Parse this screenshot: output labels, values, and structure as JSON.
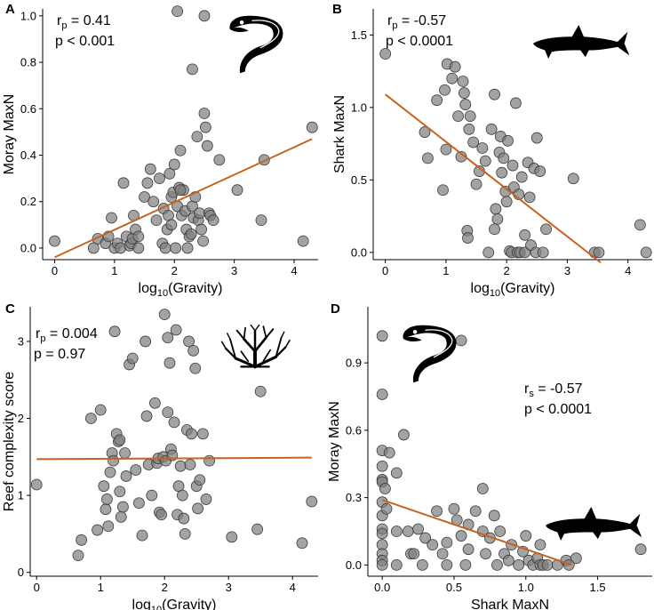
{
  "chart_data": [
    {
      "panel": "A",
      "type": "scatter",
      "xlabel_base": "log",
      "xlabel_sub": "10",
      "xlabel_tail": "(Gravity)",
      "ylabel": "Moray MaxN",
      "xlim": [
        -0.2,
        4.4
      ],
      "ylim": [
        -0.05,
        1.03
      ],
      "xticks": [
        0,
        1,
        2,
        3,
        4
      ],
      "xtick_labels": [
        "0",
        "1",
        "2",
        "3",
        "4"
      ],
      "yticks": [
        0,
        0.2,
        0.4,
        0.6,
        0.8,
        1.0
      ],
      "ytick_labels": [
        "0.0",
        "0.2",
        "0.4",
        "0.6",
        "0.8",
        "1.0"
      ],
      "stat_line1": {
        "base": "r",
        "sub": "p",
        "tail": " = 0.41"
      },
      "stat_line2": "p < 0.001",
      "icon": "moray-eel-icon",
      "fit": {
        "x": [
          0.0,
          4.3
        ],
        "y": [
          -0.04,
          0.47
        ]
      },
      "points": [
        [
          0.0,
          0.03
        ],
        [
          0.65,
          0.0
        ],
        [
          0.72,
          0.04
        ],
        [
          0.85,
          0.02
        ],
        [
          0.9,
          0.05
        ],
        [
          0.95,
          0.13
        ],
        [
          1.0,
          0.0
        ],
        [
          1.05,
          0.02
        ],
        [
          1.1,
          0.0
        ],
        [
          1.15,
          0.28
        ],
        [
          1.2,
          0.05
        ],
        [
          1.25,
          0.01
        ],
        [
          1.28,
          0.02
        ],
        [
          1.3,
          0.04
        ],
        [
          1.32,
          0.14
        ],
        [
          1.35,
          0.08
        ],
        [
          1.4,
          0.0
        ],
        [
          1.5,
          0.22
        ],
        [
          1.55,
          0.28
        ],
        [
          1.6,
          0.34
        ],
        [
          1.65,
          0.2
        ],
        [
          1.7,
          0.12
        ],
        [
          1.75,
          0.3
        ],
        [
          1.8,
          0.02
        ],
        [
          1.82,
          0.17
        ],
        [
          1.85,
          0.0
        ],
        [
          1.88,
          0.08
        ],
        [
          1.9,
          0.14
        ],
        [
          1.92,
          0.32
        ],
        [
          1.95,
          0.22
        ],
        [
          1.98,
          0.24
        ],
        [
          2.0,
          0.36
        ],
        [
          2.02,
          0.0
        ],
        [
          2.05,
          0.18
        ],
        [
          2.08,
          0.26
        ],
        [
          2.1,
          0.42
        ],
        [
          2.12,
          0.14
        ],
        [
          2.15,
          0.25
        ],
        [
          2.18,
          0.16
        ],
        [
          2.2,
          0.08
        ],
        [
          2.22,
          0.0
        ],
        [
          2.25,
          0.05
        ],
        [
          2.28,
          0.06
        ],
        [
          2.3,
          0.18
        ],
        [
          2.32,
          0.13
        ],
        [
          2.35,
          0.22
        ],
        [
          2.38,
          0.48
        ],
        [
          2.4,
          0.12
        ],
        [
          2.42,
          0.15
        ],
        [
          2.45,
          0.08
        ],
        [
          2.48,
          0.03
        ],
        [
          2.5,
          0.58
        ],
        [
          2.52,
          0.52
        ],
        [
          2.55,
          0.44
        ],
        [
          2.58,
          0.15
        ],
        [
          2.6,
          0.14
        ],
        [
          2.65,
          0.12
        ],
        [
          2.75,
          0.38
        ],
        [
          2.3,
          0.77
        ],
        [
          2.05,
          1.02
        ],
        [
          2.5,
          1.0
        ],
        [
          2.1,
          0.25
        ],
        [
          1.95,
          0.1
        ],
        [
          1.4,
          0.05
        ],
        [
          3.05,
          0.25
        ],
        [
          3.45,
          0.12
        ],
        [
          3.5,
          0.38
        ],
        [
          4.15,
          0.03
        ],
        [
          4.3,
          0.52
        ]
      ]
    },
    {
      "panel": "B",
      "type": "scatter",
      "xlabel_base": "log",
      "xlabel_sub": "10",
      "xlabel_tail": "(Gravity)",
      "ylabel": "Shark MaxN",
      "xlim": [
        -0.2,
        4.4
      ],
      "ylim": [
        -0.05,
        1.68
      ],
      "xticks": [
        0,
        1,
        2,
        3,
        4
      ],
      "xtick_labels": [
        "0",
        "1",
        "2",
        "3",
        "4"
      ],
      "yticks": [
        0,
        0.5,
        1.0,
        1.5
      ],
      "ytick_labels": [
        "0.0",
        "0.5",
        "1.0",
        "1.5"
      ],
      "stat_line1": {
        "base": "r",
        "sub": "p",
        "tail": " = -0.57"
      },
      "stat_line2": "p < 0.0001",
      "icon": "shark-icon",
      "fit": {
        "x": [
          0.0,
          3.55
        ],
        "y": [
          1.09,
          -0.07
        ]
      },
      "points": [
        [
          0.0,
          1.37
        ],
        [
          0.65,
          0.83
        ],
        [
          0.7,
          0.65
        ],
        [
          0.85,
          1.05
        ],
        [
          0.95,
          0.43
        ],
        [
          0.98,
          1.12
        ],
        [
          1.0,
          0.71
        ],
        [
          1.02,
          1.3
        ],
        [
          1.1,
          1.2
        ],
        [
          1.15,
          1.28
        ],
        [
          1.2,
          0.94
        ],
        [
          1.25,
          0.66
        ],
        [
          1.28,
          1.18
        ],
        [
          1.3,
          1.1
        ],
        [
          1.32,
          1.02
        ],
        [
          1.35,
          0.15
        ],
        [
          1.36,
          0.1
        ],
        [
          1.38,
          0.85
        ],
        [
          1.4,
          0.94
        ],
        [
          1.45,
          0.76
        ],
        [
          1.5,
          0.47
        ],
        [
          1.55,
          0.56
        ],
        [
          1.6,
          0.72
        ],
        [
          1.65,
          0.63
        ],
        [
          1.7,
          0.0
        ],
        [
          1.75,
          0.85
        ],
        [
          1.8,
          1.09
        ],
        [
          1.82,
          0.3
        ],
        [
          1.85,
          0.23
        ],
        [
          1.88,
          0.69
        ],
        [
          1.9,
          0.8
        ],
        [
          1.92,
          0.55
        ],
        [
          1.95,
          0.65
        ],
        [
          1.98,
          0.42
        ],
        [
          2.0,
          0.35
        ],
        [
          2.02,
          0.77
        ],
        [
          2.05,
          0.01
        ],
        [
          2.08,
          0.0
        ],
        [
          2.1,
          0.6
        ],
        [
          2.12,
          0.45
        ],
        [
          2.15,
          1.03
        ],
        [
          2.18,
          0.0
        ],
        [
          2.2,
          0.4
        ],
        [
          2.22,
          0.0
        ],
        [
          2.25,
          0.52
        ],
        [
          2.3,
          0.0
        ],
        [
          2.35,
          0.62
        ],
        [
          2.38,
          0.38
        ],
        [
          2.4,
          0.05
        ],
        [
          2.45,
          0.58
        ],
        [
          2.48,
          0.0
        ],
        [
          2.5,
          0.79
        ],
        [
          2.55,
          0.56
        ],
        [
          2.6,
          0.0
        ],
        [
          2.65,
          0.16
        ],
        [
          3.1,
          0.51
        ],
        [
          3.45,
          0.0
        ],
        [
          3.52,
          0.0
        ],
        [
          4.2,
          0.19
        ],
        [
          4.3,
          0.0
        ],
        [
          1.8,
          0.16
        ],
        [
          2.3,
          0.12
        ]
      ]
    },
    {
      "panel": "C",
      "type": "scatter",
      "xlabel_base": "log",
      "xlabel_sub": "10",
      "xlabel_tail": "(Gravity)",
      "ylabel": "Reef complexity score",
      "xlim": [
        -0.1,
        4.4
      ],
      "ylim": [
        -0.05,
        3.45
      ],
      "xticks": [
        0,
        1,
        2,
        3,
        4
      ],
      "xtick_labels": [
        "0",
        "1",
        "2",
        "3",
        "4"
      ],
      "yticks": [
        0,
        1,
        2,
        3
      ],
      "ytick_labels": [
        "0",
        "1",
        "2",
        "3"
      ],
      "stat_line1": {
        "base": "r",
        "sub": "p",
        "tail": " = 0.004"
      },
      "stat_line2": "p = 0.97",
      "icon": "coral-icon",
      "fit": {
        "x": [
          0.0,
          4.3
        ],
        "y": [
          1.47,
          1.49
        ]
      },
      "points": [
        [
          0.0,
          1.14
        ],
        [
          0.65,
          0.22
        ],
        [
          0.7,
          0.42
        ],
        [
          0.85,
          2.0
        ],
        [
          0.95,
          0.55
        ],
        [
          1.0,
          2.11
        ],
        [
          1.05,
          1.12
        ],
        [
          1.08,
          0.82
        ],
        [
          1.1,
          0.95
        ],
        [
          1.12,
          0.6
        ],
        [
          1.15,
          1.3
        ],
        [
          1.18,
          1.55
        ],
        [
          1.2,
          1.45
        ],
        [
          1.22,
          3.13
        ],
        [
          1.25,
          1.8
        ],
        [
          1.28,
          1.7
        ],
        [
          1.3,
          1.72
        ],
        [
          1.32,
          0.72
        ],
        [
          1.35,
          0.85
        ],
        [
          1.38,
          1.55
        ],
        [
          1.4,
          1.25
        ],
        [
          1.45,
          2.7
        ],
        [
          1.5,
          2.78
        ],
        [
          1.55,
          1.33
        ],
        [
          1.6,
          0.9
        ],
        [
          1.65,
          0.48
        ],
        [
          1.7,
          3.0
        ],
        [
          1.72,
          2.03
        ],
        [
          1.75,
          1.4
        ],
        [
          1.8,
          1.0
        ],
        [
          1.85,
          2.2
        ],
        [
          1.88,
          1.42
        ],
        [
          1.9,
          1.48
        ],
        [
          1.92,
          0.78
        ],
        [
          1.95,
          0.75
        ],
        [
          1.98,
          1.5
        ],
        [
          2.0,
          3.35
        ],
        [
          2.02,
          1.45
        ],
        [
          2.05,
          2.08
        ],
        [
          2.08,
          2.72
        ],
        [
          2.1,
          1.6
        ],
        [
          2.12,
          1.52
        ],
        [
          2.15,
          1.95
        ],
        [
          2.18,
          3.15
        ],
        [
          2.2,
          0.75
        ],
        [
          2.22,
          1.12
        ],
        [
          2.25,
          1.38
        ],
        [
          2.28,
          1.0
        ],
        [
          2.3,
          0.7
        ],
        [
          2.32,
          0.5
        ],
        [
          2.35,
          1.85
        ],
        [
          2.38,
          3.0
        ],
        [
          2.4,
          1.4
        ],
        [
          2.42,
          1.8
        ],
        [
          2.45,
          2.88
        ],
        [
          2.48,
          2.65
        ],
        [
          2.5,
          1.12
        ],
        [
          2.52,
          0.83
        ],
        [
          2.55,
          1.2
        ],
        [
          2.6,
          1.8
        ],
        [
          2.65,
          0.95
        ],
        [
          2.7,
          1.45
        ],
        [
          3.05,
          0.46
        ],
        [
          3.45,
          0.56
        ],
        [
          3.5,
          2.35
        ],
        [
          4.15,
          0.38
        ],
        [
          4.3,
          0.92
        ],
        [
          2.05,
          3.05
        ],
        [
          1.3,
          1.05
        ]
      ]
    },
    {
      "panel": "D",
      "type": "scatter",
      "xlabel_base": "Shark MaxN",
      "xlabel_sub": "",
      "xlabel_tail": "",
      "ylabel": "Moray MaxN",
      "xlim": [
        -0.1,
        1.88
      ],
      "ylim": [
        -0.05,
        1.15
      ],
      "xticks": [
        0,
        0.5,
        1.0,
        1.5
      ],
      "xtick_labels": [
        "0.0",
        "0.5",
        "1.0",
        "1.5"
      ],
      "yticks": [
        0,
        0.3,
        0.6,
        0.9
      ],
      "ytick_labels": [
        "0.0",
        "0.3",
        "0.6",
        "0.9"
      ],
      "stat_line1": {
        "base": "r",
        "sub": "s",
        "tail": " = -0.57"
      },
      "stat_line2": "p < 0.0001",
      "icon": "moray-eel-and-shark-icons",
      "fit": {
        "x": [
          0.0,
          1.32
        ],
        "y": [
          0.29,
          0.0
        ]
      },
      "points": [
        [
          0.0,
          1.02
        ],
        [
          0.0,
          0.76
        ],
        [
          0.0,
          0.51
        ],
        [
          0.0,
          0.44
        ],
        [
          0.0,
          0.38
        ],
        [
          0.0,
          0.37
        ],
        [
          0.0,
          0.28
        ],
        [
          0.0,
          0.22
        ],
        [
          0.0,
          0.16
        ],
        [
          0.0,
          0.14
        ],
        [
          0.0,
          0.09
        ],
        [
          0.0,
          0.05
        ],
        [
          0.0,
          0.02
        ],
        [
          0.0,
          0.0
        ],
        [
          0.02,
          0.34
        ],
        [
          0.03,
          0.25
        ],
        [
          0.05,
          0.5
        ],
        [
          0.1,
          0.41
        ],
        [
          0.1,
          0.15
        ],
        [
          0.1,
          0.0
        ],
        [
          0.15,
          0.58
        ],
        [
          0.18,
          0.15
        ],
        [
          0.2,
          0.05
        ],
        [
          0.25,
          0.16
        ],
        [
          0.28,
          0.0
        ],
        [
          0.3,
          0.12
        ],
        [
          0.35,
          0.09
        ],
        [
          0.38,
          0.24
        ],
        [
          0.42,
          0.05
        ],
        [
          0.45,
          0.0
        ],
        [
          0.5,
          0.25
        ],
        [
          0.52,
          0.2
        ],
        [
          0.55,
          0.13
        ],
        [
          0.58,
          0.0
        ],
        [
          0.6,
          0.07
        ],
        [
          0.65,
          0.24
        ],
        [
          0.7,
          0.34
        ],
        [
          0.7,
          0.15
        ],
        [
          0.72,
          0.05
        ],
        [
          0.75,
          0.12
        ],
        [
          0.8,
          0.0
        ],
        [
          0.82,
          0.15
        ],
        [
          0.85,
          0.05
        ],
        [
          0.88,
          0.02
        ],
        [
          0.9,
          0.09
        ],
        [
          0.95,
          0.0
        ],
        [
          0.98,
          0.06
        ],
        [
          1.0,
          0.13
        ],
        [
          1.02,
          0.02
        ],
        [
          1.05,
          0.0
        ],
        [
          1.08,
          0.03
        ],
        [
          1.1,
          0.0
        ],
        [
          1.12,
          0.0
        ],
        [
          1.15,
          0.0
        ],
        [
          1.22,
          0.0
        ],
        [
          1.28,
          0.02
        ],
        [
          1.35,
          0.03
        ],
        [
          1.1,
          0.09
        ],
        [
          0.78,
          0.22
        ],
        [
          0.6,
          0.18
        ],
        [
          1.3,
          0.0
        ],
        [
          0.45,
          0.1
        ],
        [
          1.8,
          0.07
        ],
        [
          0.55,
          1.0
        ],
        [
          0.22,
          0.05
        ]
      ]
    }
  ]
}
